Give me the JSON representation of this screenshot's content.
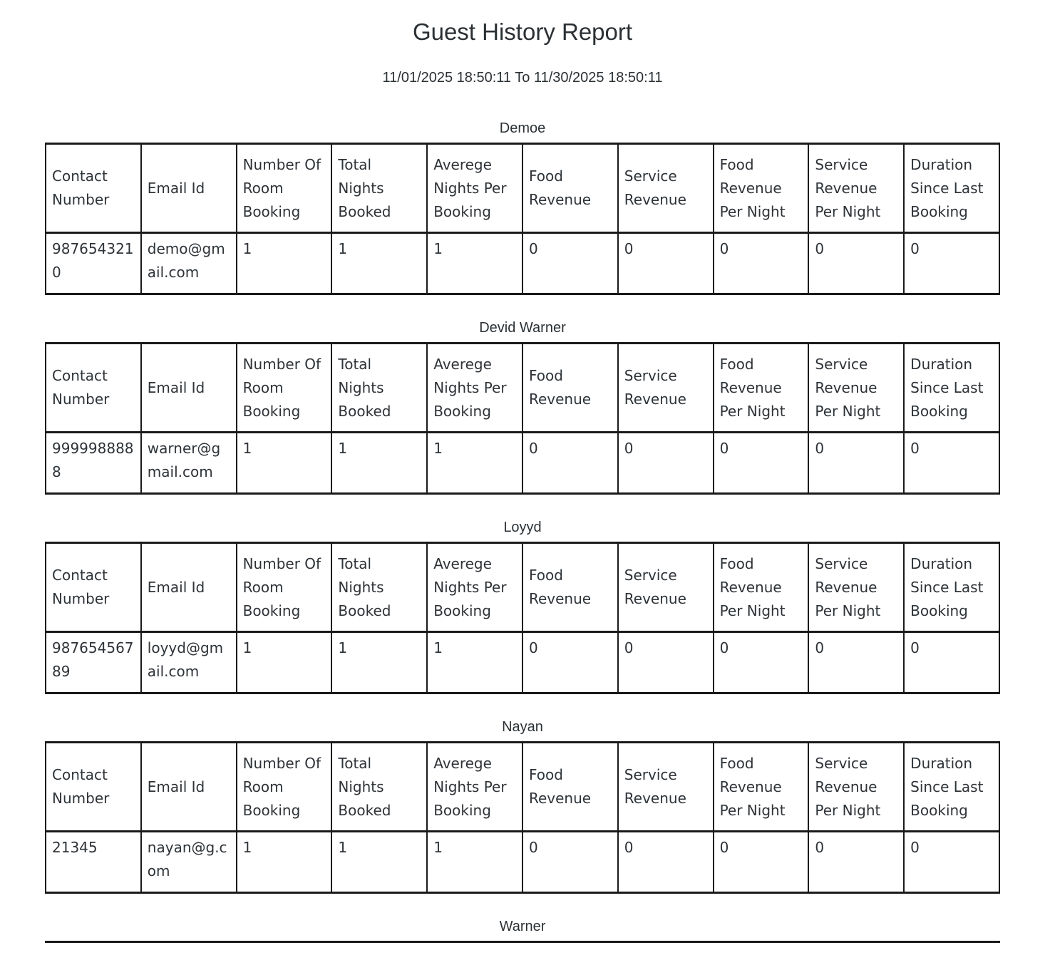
{
  "report": {
    "title": "Guest History Report",
    "date_range": "11/01/2025 18:50:11 To 11/30/2025 18:50:11"
  },
  "table_headers": [
    "Contact Number",
    "Email Id",
    "Number Of Room Booking",
    "Total Nights Booked",
    "Averege Nights Per Booking",
    "Food Revenue",
    "Service Revenue",
    "Food Revenue Per Night",
    "Service Revenue Per Night",
    "Duration Since Last Booking"
  ],
  "sections": [
    {
      "guest_name": "Demoe",
      "rows": [
        [
          "9876543210",
          "demo@gmail.com",
          "1",
          "1",
          "1",
          "0",
          "0",
          "0",
          "0",
          "0"
        ]
      ]
    },
    {
      "guest_name": "Devid Warner",
      "rows": [
        [
          "9999988888",
          "warner@gmail.com",
          "1",
          "1",
          "1",
          "0",
          "0",
          "0",
          "0",
          "0"
        ]
      ]
    },
    {
      "guest_name": "Loyyd",
      "rows": [
        [
          "98765456789",
          "loyyd@gmail.com",
          "1",
          "1",
          "1",
          "0",
          "0",
          "0",
          "0",
          "0"
        ]
      ]
    },
    {
      "guest_name": "Nayan",
      "rows": [
        [
          "21345",
          "nayan@g.com",
          "1",
          "1",
          "1",
          "0",
          "0",
          "0",
          "0",
          "0"
        ]
      ]
    },
    {
      "guest_name": "Warner",
      "rows": []
    }
  ],
  "colors": {
    "text": "#2e3338",
    "border": "#1a1a1a",
    "background": "#ffffff"
  }
}
